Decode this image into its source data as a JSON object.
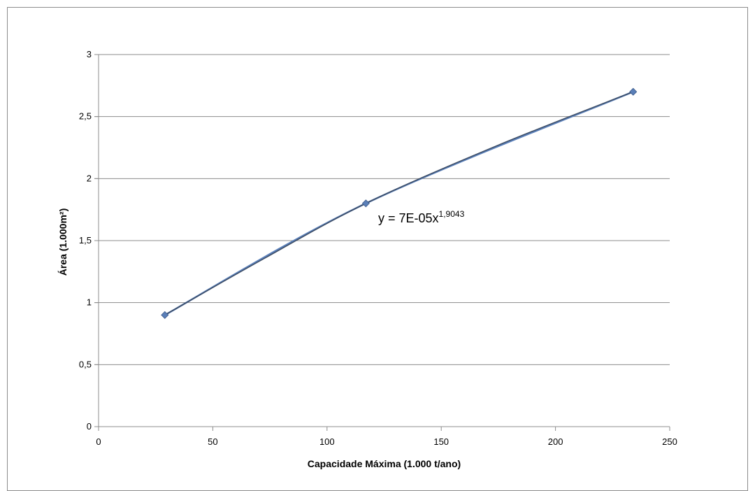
{
  "chart_data": {
    "type": "scatter",
    "xlabel": "Capacidade Máxima (1.000 t/ano)",
    "ylabel": "Área (1.000m²)",
    "xlim": [
      0,
      250
    ],
    "ylim": [
      0,
      3
    ],
    "x_ticks": [
      "0",
      "50",
      "100",
      "150",
      "200",
      "250"
    ],
    "y_ticks": [
      "0",
      "0,5",
      "1",
      "1,5",
      "2",
      "2,5",
      "3"
    ],
    "x_tick_values": [
      0,
      50,
      100,
      150,
      200,
      250
    ],
    "y_tick_values": [
      0,
      0.5,
      1,
      1.5,
      2,
      2.5,
      3
    ],
    "grid": "horizontal",
    "series": [
      {
        "x": [
          29,
          117,
          234
        ],
        "y": [
          0.9,
          1.8,
          2.7
        ],
        "marker": "diamond",
        "color": "#5a7fb8",
        "line": "smooth"
      }
    ],
    "trendline": {
      "type": "power",
      "equation_base": "y = 7E-05x",
      "equation_exponent": "1,9043",
      "color": "#3c4c64"
    }
  }
}
